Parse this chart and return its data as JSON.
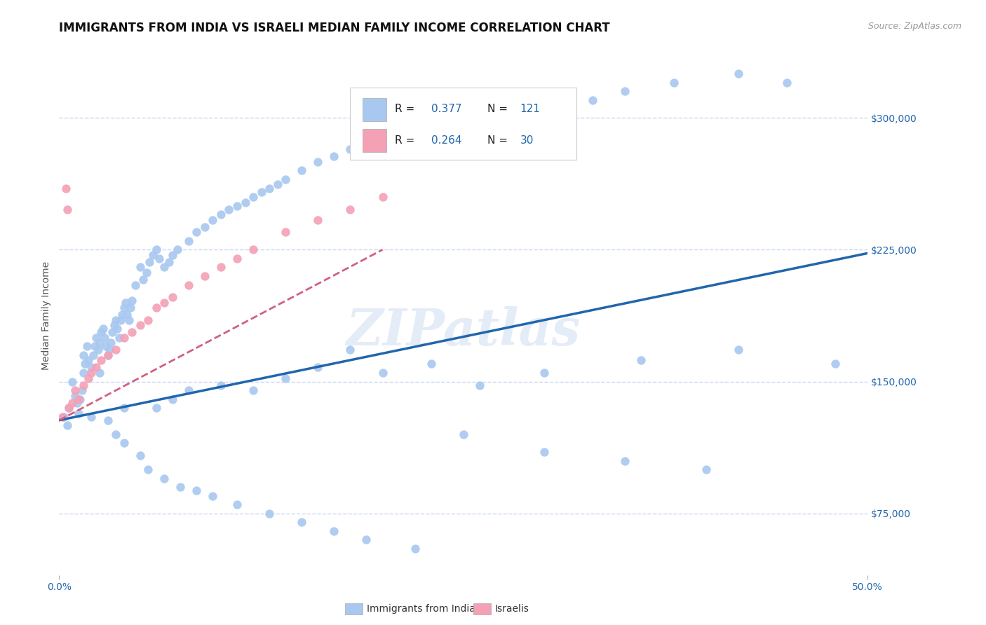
{
  "title": "IMMIGRANTS FROM INDIA VS ISRAELI MEDIAN FAMILY INCOME CORRELATION CHART",
  "source": "Source: ZipAtlas.com",
  "ylabel": "Median Family Income",
  "yticks": [
    75000,
    150000,
    225000,
    300000
  ],
  "ytick_labels": [
    "$75,000",
    "$150,000",
    "$225,000",
    "$300,000"
  ],
  "xlim": [
    0.0,
    50.0
  ],
  "ylim": [
    40000,
    335000
  ],
  "blue_color": "#a8c8f0",
  "blue_dark": "#2166ac",
  "pink_color": "#f4a0b5",
  "pink_dark": "#d06080",
  "watermark": "ZIPatlas",
  "series1_label": "Immigrants from India",
  "series2_label": "Israelis",
  "blue_dots_x": [
    0.3,
    0.5,
    0.6,
    0.8,
    1.0,
    1.1,
    1.2,
    1.3,
    1.4,
    1.5,
    1.6,
    1.7,
    1.8,
    2.0,
    2.1,
    2.2,
    2.3,
    2.4,
    2.5,
    2.6,
    2.7,
    2.8,
    2.9,
    3.0,
    3.1,
    3.2,
    3.3,
    3.4,
    3.5,
    3.6,
    3.7,
    3.8,
    3.9,
    4.0,
    4.1,
    4.2,
    4.3,
    4.4,
    4.5,
    4.7,
    5.0,
    5.2,
    5.4,
    5.6,
    5.8,
    6.0,
    6.2,
    6.5,
    6.8,
    7.0,
    7.3,
    8.0,
    8.5,
    9.0,
    9.5,
    10.0,
    10.5,
    11.0,
    11.5,
    12.0,
    12.5,
    13.0,
    13.5,
    14.0,
    15.0,
    16.0,
    17.0,
    18.0,
    19.0,
    20.0,
    22.0,
    25.0,
    27.0,
    29.0,
    31.0,
    33.0,
    35.0,
    38.0,
    42.0,
    45.0,
    1.5,
    2.5,
    3.5,
    4.0,
    5.5,
    6.5,
    7.5,
    8.5,
    9.5,
    11.0,
    13.0,
    15.0,
    17.0,
    19.0,
    22.0,
    25.0,
    30.0,
    35.0,
    40.0,
    2.0,
    3.0,
    4.0,
    5.0,
    6.0,
    7.0,
    8.0,
    10.0,
    12.0,
    14.0,
    16.0,
    18.0,
    20.0,
    23.0,
    26.0,
    30.0,
    36.0,
    42.0,
    48.0
  ],
  "blue_dots_y": [
    130000,
    125000,
    135000,
    150000,
    142000,
    138000,
    132000,
    140000,
    145000,
    155000,
    160000,
    170000,
    162000,
    158000,
    165000,
    170000,
    175000,
    168000,
    172000,
    178000,
    180000,
    175000,
    170000,
    165000,
    168000,
    172000,
    178000,
    182000,
    185000,
    180000,
    175000,
    185000,
    188000,
    192000,
    195000,
    188000,
    185000,
    192000,
    196000,
    205000,
    215000,
    208000,
    212000,
    218000,
    222000,
    225000,
    220000,
    215000,
    218000,
    222000,
    225000,
    230000,
    235000,
    238000,
    242000,
    245000,
    248000,
    250000,
    252000,
    255000,
    258000,
    260000,
    262000,
    265000,
    270000,
    275000,
    278000,
    282000,
    285000,
    288000,
    292000,
    300000,
    302000,
    305000,
    308000,
    310000,
    315000,
    320000,
    325000,
    320000,
    165000,
    155000,
    120000,
    115000,
    100000,
    95000,
    90000,
    88000,
    85000,
    80000,
    75000,
    70000,
    65000,
    60000,
    55000,
    120000,
    110000,
    105000,
    100000,
    130000,
    128000,
    135000,
    108000,
    135000,
    140000,
    145000,
    148000,
    145000,
    152000,
    158000,
    168000,
    155000,
    160000,
    148000,
    155000,
    162000,
    168000,
    160000
  ],
  "pink_dots_x": [
    0.2,
    0.4,
    0.5,
    0.6,
    0.8,
    1.0,
    1.2,
    1.5,
    1.8,
    2.0,
    2.3,
    2.6,
    3.0,
    3.5,
    4.0,
    4.5,
    5.0,
    5.5,
    6.0,
    6.5,
    7.0,
    8.0,
    9.0,
    10.0,
    11.0,
    12.0,
    14.0,
    16.0,
    18.0,
    20.0
  ],
  "pink_dots_y": [
    130000,
    260000,
    248000,
    135000,
    138000,
    145000,
    140000,
    148000,
    152000,
    155000,
    158000,
    162000,
    165000,
    168000,
    175000,
    178000,
    182000,
    185000,
    192000,
    195000,
    198000,
    205000,
    210000,
    215000,
    220000,
    225000,
    235000,
    242000,
    248000,
    255000
  ],
  "blue_line_x": [
    0.0,
    50.0
  ],
  "blue_line_y": [
    128000,
    223000
  ],
  "pink_line_x": [
    0.0,
    20.0
  ],
  "pink_line_y": [
    128000,
    225000
  ],
  "grid_color": "#c8d8f0",
  "background_color": "#ffffff",
  "title_color": "#111111",
  "axis_color": "#2166ac",
  "title_fontsize": 12,
  "source_fontsize": 9,
  "ylabel_fontsize": 10,
  "tick_fontsize": 10
}
